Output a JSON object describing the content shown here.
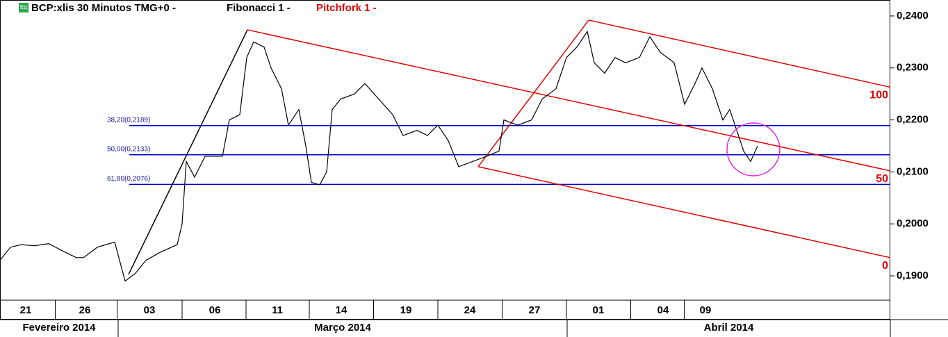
{
  "header": {
    "badge": "Eq",
    "title": "BCP:xlis 30 Minutos TMG+0  -",
    "study1": "Fibonacci 1 -",
    "study2": "Pitchfork 1 -"
  },
  "chart_data": {
    "type": "line",
    "xlim": [
      0,
      128.1
    ],
    "ylim": [
      0.18532,
      0.24307
    ],
    "yticks": [
      {
        "value": 0.19,
        "label": "0,1900"
      },
      {
        "value": 0.2,
        "label": "0,2000"
      },
      {
        "value": 0.21,
        "label": "0,2100"
      },
      {
        "value": 0.22,
        "label": "0,2200"
      },
      {
        "value": 0.23,
        "label": "0,2300"
      },
      {
        "value": 0.24,
        "label": "0,2400"
      }
    ],
    "xticks": [
      {
        "value": 3.7,
        "label": "21"
      },
      {
        "value": 12.2,
        "label": "26"
      },
      {
        "value": 21.5,
        "label": "03"
      },
      {
        "value": 30.9,
        "label": "06"
      },
      {
        "value": 39.9,
        "label": "11"
      },
      {
        "value": 49.1,
        "label": "14"
      },
      {
        "value": 58.4,
        "label": "19"
      },
      {
        "value": 67.6,
        "label": "24"
      },
      {
        "value": 76.9,
        "label": "27"
      },
      {
        "value": 86.1,
        "label": "01"
      },
      {
        "value": 95.4,
        "label": "04"
      },
      {
        "value": 101.5,
        "label": "09"
      }
    ],
    "months": [
      {
        "start": 0,
        "end": 17.0,
        "label": "Fevereiro 2014"
      },
      {
        "start": 17.0,
        "end": 81.6,
        "label": "Março 2014"
      },
      {
        "start": 81.6,
        "end": 128.1,
        "label": "Abril 2014"
      }
    ],
    "series": [
      {
        "name": "BCP:xlis",
        "color": "#000000",
        "x": [
          0,
          1.5,
          3,
          5,
          7,
          9,
          11,
          12,
          14,
          16.5,
          17,
          18,
          19.5,
          21,
          23,
          25.5,
          26.2,
          26.8,
          28,
          29.5,
          32,
          33,
          34.5,
          35.5,
          36.5,
          38,
          39,
          40.5,
          41.5,
          43,
          44,
          44.8,
          46,
          47,
          47.8,
          49,
          51,
          52.5,
          54.5,
          56.5,
          58,
          60,
          61.5,
          63,
          64.5,
          66,
          68,
          70,
          71.8,
          72.5,
          74.5,
          76.5,
          78,
          80,
          81.5,
          83,
          84.5,
          85.5,
          87,
          88.5,
          90,
          92,
          93.5,
          95,
          97,
          98.5,
          100,
          101,
          102.5,
          104,
          105,
          106,
          107,
          108,
          109
        ],
        "values": [
          0.193,
          0.1955,
          0.196,
          0.1958,
          0.1962,
          0.1948,
          0.1935,
          0.1935,
          0.1955,
          0.1965,
          0.194,
          0.189,
          0.1905,
          0.193,
          0.1945,
          0.196,
          0.2,
          0.212,
          0.209,
          0.213,
          0.213,
          0.22,
          0.221,
          0.232,
          0.235,
          0.234,
          0.23,
          0.226,
          0.219,
          0.222,
          0.215,
          0.208,
          0.2075,
          0.21,
          0.222,
          0.224,
          0.225,
          0.227,
          0.224,
          0.221,
          0.217,
          0.218,
          0.217,
          0.219,
          0.216,
          0.211,
          0.212,
          0.213,
          0.214,
          0.22,
          0.219,
          0.22,
          0.224,
          0.226,
          0.232,
          0.234,
          0.237,
          0.231,
          0.229,
          0.232,
          0.231,
          0.232,
          0.236,
          0.233,
          0.231,
          0.223,
          0.227,
          0.23,
          0.226,
          0.22,
          0.222,
          0.218,
          0.214,
          0.212,
          0.215
        ]
      }
    ],
    "fibonacci": {
      "color": "#0000cc",
      "start": 18.6,
      "levels": [
        {
          "value": 0.2189,
          "label": "38,20(0,2189)"
        },
        {
          "value": 0.2133,
          "label": "50,00(0,2133)"
        },
        {
          "value": 0.2076,
          "label": "61,80(0,2076)"
        }
      ]
    },
    "trend_line": {
      "color": "#000000",
      "x": [
        18.5,
        35.6
      ],
      "values": [
        0.19027,
        0.23733
      ]
    },
    "pitchfork": {
      "color": "#e00000",
      "lines": [
        {
          "label": "100",
          "x": [
            84.7,
            128.1
          ],
          "values": [
            0.2392,
            0.2263
          ]
        },
        {
          "label": "50",
          "x": [
            35.6,
            128.1
          ],
          "values": [
            0.23733,
            0.2102
          ]
        },
        {
          "label": "0",
          "x": [
            68.8,
            128.1
          ],
          "values": [
            0.211,
            0.1935
          ]
        }
      ],
      "handle": {
        "x": [
          68.8,
          84.7
        ],
        "values": [
          0.211,
          0.2392
        ]
      }
    },
    "highlight": {
      "color": "#e020e0",
      "x": 108.4,
      "value": 0.21433
    }
  }
}
